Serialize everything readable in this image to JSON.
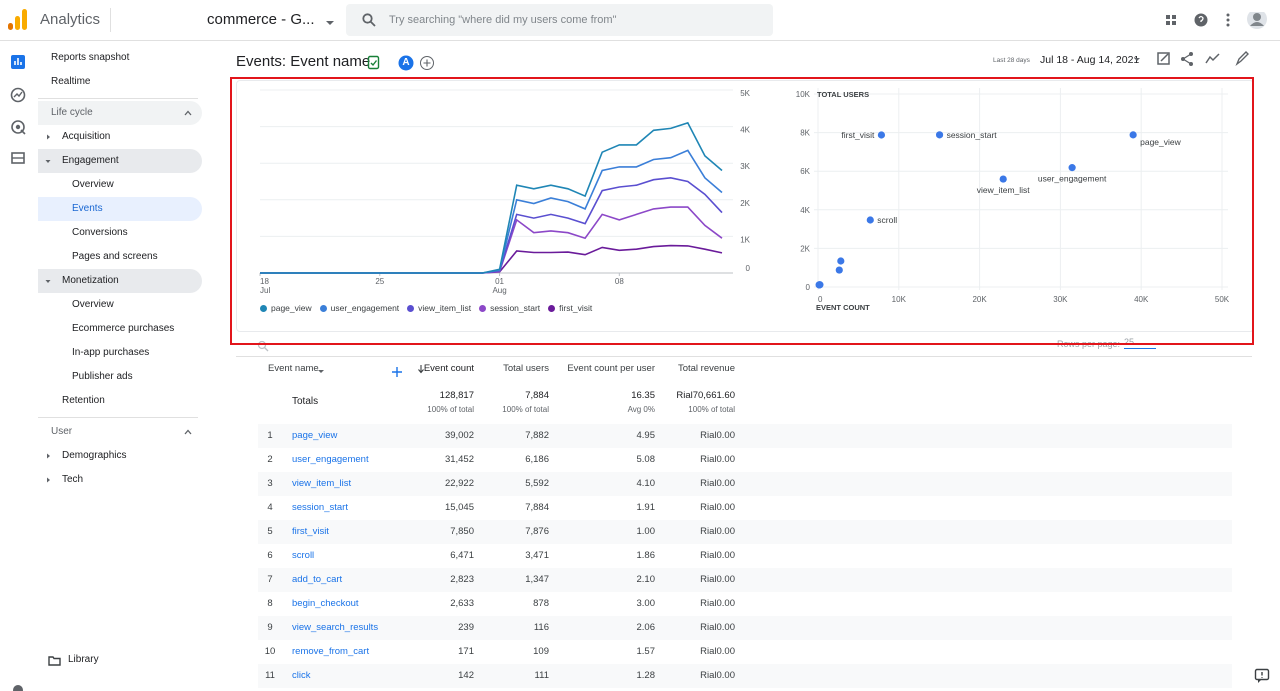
{
  "header": {
    "app_name": "Analytics",
    "property": "commerce - G...",
    "search_placeholder": "Try searching \"where did my users come from\""
  },
  "nav": {
    "top": [
      "Reports snapshot",
      "Realtime"
    ],
    "sections": [
      {
        "title": "Life cycle",
        "items": [
          {
            "label": "Acquisition",
            "children": []
          },
          {
            "label": "Engagement",
            "children": [
              "Overview",
              {
                "label": "Events",
                "selected": true
              },
              "Conversions",
              "Pages and screens"
            ]
          },
          {
            "label": "Monetization",
            "children": [
              "Overview",
              "Ecommerce purchases",
              "In-app purchases",
              "Publisher ads"
            ]
          },
          {
            "label": "Retention"
          }
        ]
      },
      {
        "title": "User",
        "items": [
          {
            "label": "Demographics",
            "children": []
          },
          {
            "label": "Tech",
            "children": []
          }
        ]
      }
    ],
    "library": "Library"
  },
  "page": {
    "title": "Events: Event name",
    "badge": "A",
    "date_label": "Last 28 days",
    "date_range": "Jul 18 - Aug 14, 2021"
  },
  "chart_data": [
    {
      "type": "line",
      "x": [
        "2021-07-18",
        "2021-07-19",
        "2021-07-20",
        "2021-07-21",
        "2021-07-22",
        "2021-07-23",
        "2021-07-24",
        "2021-07-25",
        "2021-07-26",
        "2021-07-27",
        "2021-07-28",
        "2021-07-29",
        "2021-07-30",
        "2021-07-31",
        "2021-08-01",
        "2021-08-02",
        "2021-08-03",
        "2021-08-04",
        "2021-08-05",
        "2021-08-06",
        "2021-08-07",
        "2021-08-08",
        "2021-08-09",
        "2021-08-10",
        "2021-08-11",
        "2021-08-12",
        "2021-08-13",
        "2021-08-14"
      ],
      "xticks": [
        {
          "value": "2021-07-18",
          "label": "18",
          "sublabel": "Jul"
        },
        {
          "value": "2021-07-25",
          "label": "25"
        },
        {
          "value": "2021-08-01",
          "label": "01",
          "sublabel": "Aug"
        },
        {
          "value": "2021-08-08",
          "label": "08"
        }
      ],
      "ylim": [
        0,
        5000
      ],
      "yticks": [
        0,
        {
          "value": 1000,
          "label": "1K"
        },
        {
          "value": 2000,
          "label": "2K"
        },
        {
          "value": 3000,
          "label": "3K"
        },
        {
          "value": 4000,
          "label": "4K"
        },
        {
          "value": 5000,
          "label": "5K"
        }
      ],
      "grid": true,
      "series": [
        {
          "name": "page_view",
          "color": "#1f86b5",
          "values": [
            0,
            0,
            0,
            0,
            0,
            0,
            0,
            0,
            0,
            0,
            0,
            0,
            0,
            0,
            100,
            2400,
            2300,
            2400,
            2300,
            2100,
            3300,
            3500,
            3500,
            3900,
            3950,
            4100,
            3200,
            2800
          ]
        },
        {
          "name": "user_engagement",
          "color": "#3b7fd8",
          "values": [
            0,
            0,
            0,
            0,
            0,
            0,
            0,
            0,
            0,
            0,
            0,
            0,
            0,
            0,
            80,
            2000,
            1900,
            2050,
            1950,
            1750,
            2800,
            2900,
            2900,
            3100,
            3150,
            3350,
            2600,
            2200
          ]
        },
        {
          "name": "view_item_list",
          "color": "#5a4fd0",
          "values": [
            0,
            0,
            0,
            0,
            0,
            0,
            0,
            0,
            0,
            0,
            0,
            0,
            0,
            0,
            60,
            1600,
            1500,
            1600,
            1500,
            1350,
            2250,
            2350,
            2400,
            2550,
            2600,
            2500,
            2150,
            1650
          ]
        },
        {
          "name": "session_start",
          "color": "#8c48c8",
          "values": [
            0,
            0,
            0,
            0,
            0,
            0,
            0,
            0,
            0,
            0,
            0,
            0,
            0,
            0,
            40,
            1450,
            1100,
            1150,
            1100,
            950,
            1600,
            1450,
            1600,
            1750,
            1800,
            1800,
            1300,
            950
          ]
        },
        {
          "name": "first_visit",
          "color": "#6a1b9a",
          "values": [
            0,
            0,
            0,
            0,
            0,
            0,
            0,
            0,
            0,
            0,
            0,
            0,
            0,
            0,
            30,
            600,
            560,
            560,
            570,
            500,
            700,
            620,
            650,
            720,
            750,
            740,
            650,
            550
          ]
        }
      ]
    },
    {
      "type": "scatter",
      "y_label": "TOTAL USERS",
      "x_label": "EVENT COUNT",
      "color": "#3b78e7",
      "labels": [
        "page_view",
        "user_engagement",
        "view_item_list",
        "session_start",
        "first_visit",
        "scroll",
        null,
        null,
        null,
        null,
        null
      ],
      "x": [
        39002,
        31452,
        22922,
        15045,
        7850,
        6471,
        2823,
        2633,
        239,
        171,
        142
      ],
      "y": [
        7882,
        6186,
        5592,
        7884,
        7876,
        3471,
        1347,
        878,
        116,
        109,
        111
      ],
      "xlim": [
        0,
        50000
      ],
      "xticks": [
        0,
        {
          "value": 10000,
          "label": "10K"
        },
        {
          "value": 20000,
          "label": "20K"
        },
        {
          "value": 30000,
          "label": "30K"
        },
        {
          "value": 40000,
          "label": "40K"
        },
        {
          "value": 50000,
          "label": "50K"
        }
      ],
      "ylim": [
        0,
        10000
      ],
      "yticks": [
        0,
        {
          "value": 2000,
          "label": "2K"
        },
        {
          "value": 4000,
          "label": "4K"
        },
        {
          "value": 6000,
          "label": "6K"
        },
        {
          "value": 8000,
          "label": "8K"
        },
        {
          "value": 10000,
          "label": "10K"
        }
      ],
      "grid": true
    }
  ],
  "table_controls": {
    "rows_per_page_label": "Rows per page:",
    "rows_per_page": "25"
  },
  "table": {
    "columns": [
      "Event name",
      "Event count",
      "Total users",
      "Event count per user",
      "Total revenue"
    ],
    "totals": {
      "label": "Totals",
      "values": [
        "128,817",
        "7,884",
        "16.35",
        "Rial70,661.60"
      ],
      "notes": [
        "100% of total",
        "100% of total",
        "Avg 0%",
        "100% of total"
      ]
    },
    "rows": [
      [
        "1",
        "page_view",
        "39,002",
        "7,882",
        "4.95",
        "Rial0.00"
      ],
      [
        "2",
        "user_engagement",
        "31,452",
        "6,186",
        "5.08",
        "Rial0.00"
      ],
      [
        "3",
        "view_item_list",
        "22,922",
        "5,592",
        "4.10",
        "Rial0.00"
      ],
      [
        "4",
        "session_start",
        "15,045",
        "7,884",
        "1.91",
        "Rial0.00"
      ],
      [
        "5",
        "first_visit",
        "7,850",
        "7,876",
        "1.00",
        "Rial0.00"
      ],
      [
        "6",
        "scroll",
        "6,471",
        "3,471",
        "1.86",
        "Rial0.00"
      ],
      [
        "7",
        "add_to_cart",
        "2,823",
        "1,347",
        "2.10",
        "Rial0.00"
      ],
      [
        "8",
        "begin_checkout",
        "2,633",
        "878",
        "3.00",
        "Rial0.00"
      ],
      [
        "9",
        "view_search_results",
        "239",
        "116",
        "2.06",
        "Rial0.00"
      ],
      [
        "10",
        "remove_from_cart",
        "171",
        "109",
        "1.57",
        "Rial0.00"
      ],
      [
        "11",
        "click",
        "142",
        "111",
        "1.28",
        "Rial0.00"
      ]
    ]
  }
}
